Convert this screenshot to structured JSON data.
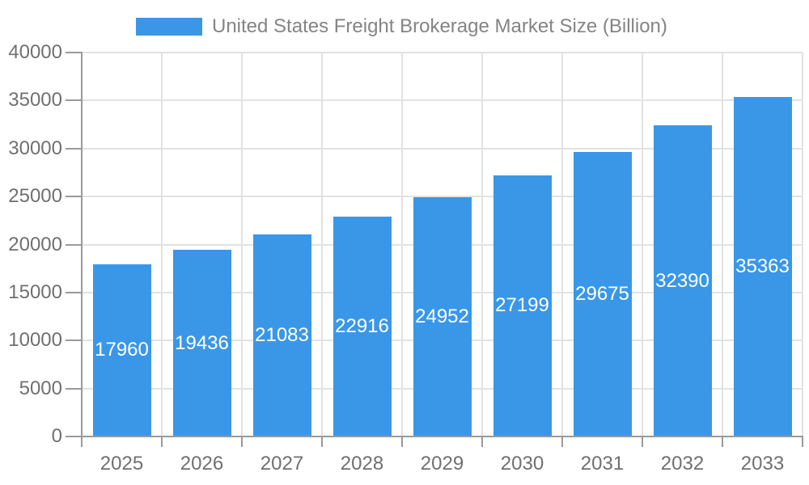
{
  "legend": {
    "label": "United States Freight Brokerage Market Size (Billion)"
  },
  "colors": {
    "bar": "#3a97e8",
    "grid": "#e2e2e2",
    "axis": "#9a9a9a",
    "tick_label": "#707070",
    "value_label": "#ffffff",
    "legend_label": "#848484",
    "background": "#ffffff"
  },
  "chart_data": {
    "type": "bar",
    "title": "United States Freight Brokerage Market Size (Billion)",
    "categories": [
      "2025",
      "2026",
      "2027",
      "2028",
      "2029",
      "2030",
      "2031",
      "2032",
      "2033"
    ],
    "values": [
      17960,
      19436,
      21083,
      22916,
      24952,
      27199,
      29675,
      32390,
      35363
    ],
    "xlabel": "",
    "ylabel": "",
    "ylim": [
      0,
      40000
    ],
    "yticks": [
      0,
      5000,
      10000,
      15000,
      20000,
      25000,
      30000,
      35000,
      40000
    ],
    "grid": true,
    "legend_position": "top",
    "value_label_position": "inside-center"
  }
}
